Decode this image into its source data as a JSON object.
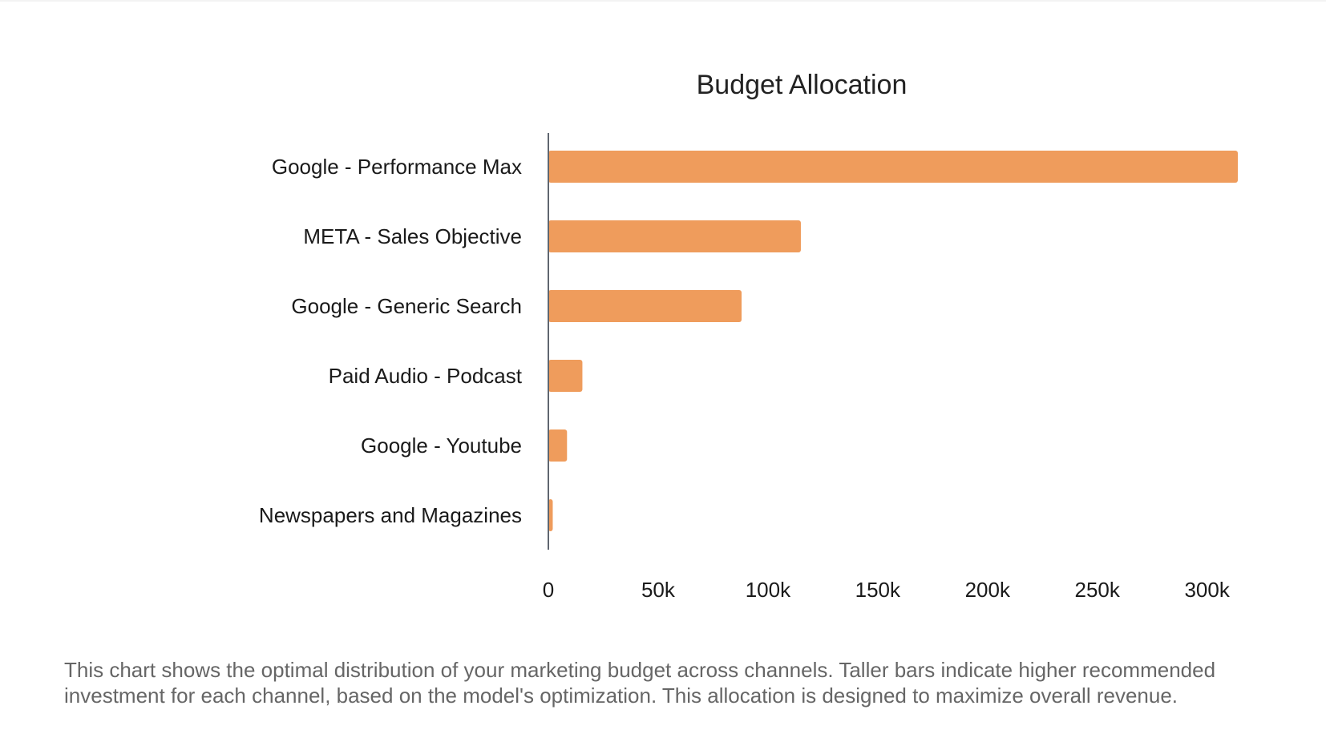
{
  "chart_data": {
    "type": "bar",
    "orientation": "horizontal",
    "title": "Budget Allocation",
    "categories": [
      "Google - Performance Max",
      "META - Sales Objective",
      "Google - Generic Search",
      "Paid Audio - Podcast",
      "Google - Youtube",
      "Newspapers and Magazines"
    ],
    "values": [
      320000,
      115000,
      88000,
      15500,
      8500,
      2000
    ],
    "x_ticks": [
      0,
      50000,
      100000,
      150000,
      200000,
      250000,
      300000
    ],
    "x_tick_labels": [
      "0",
      "50k",
      "100k",
      "150k",
      "200k",
      "250k",
      "300k"
    ],
    "xlim": [
      0,
      314000
    ],
    "xlabel": "",
    "ylabel": "",
    "grid": false,
    "bar_color": "#EF9C5C",
    "axis_color": "#5f6670"
  },
  "caption": {
    "text": "This chart shows the optimal distribution of your marketing budget across channels. Taller bars indicate higher recommended investment for each channel, based on the model's optimization. This allocation is designed to maximize overall revenue."
  }
}
